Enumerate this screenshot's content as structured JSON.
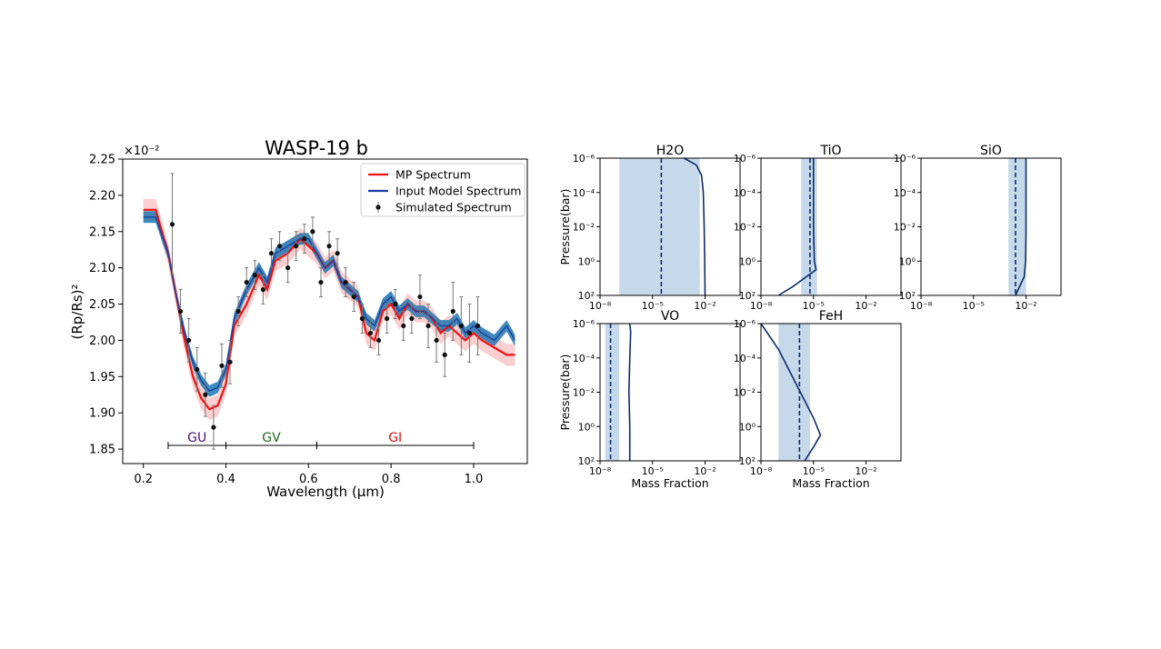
{
  "chart_data": [
    {
      "type": "line",
      "title": "WASP-19 b",
      "xlabel": "Wavelength (μm)",
      "ylabel": "(Rp/Rs)²",
      "y_offset_text": "×10⁻²",
      "xlim": [
        0.15,
        1.13
      ],
      "ylim": [
        1.83,
        2.25
      ],
      "x_ticks": [
        "0.2",
        "0.4",
        "0.6",
        "0.8",
        "1.0"
      ],
      "y_ticks": [
        "1.85",
        "1.90",
        "1.95",
        "2.00",
        "2.05",
        "2.10",
        "2.15",
        "2.20",
        "2.25"
      ],
      "legend": {
        "position": "top-right",
        "entries": [
          "MP Spectrum",
          "Input Model Spectrum",
          "Simulated Spectrum"
        ]
      },
      "colors": {
        "mp": "#ee1111",
        "input": "#1a3f9e",
        "input_fill": "#1f77b4",
        "sim": "#111111",
        "band_fill": "#f7a8a8"
      },
      "bands": [
        {
          "label": "GU",
          "x0": 0.26,
          "x1": 0.4,
          "color": "#4b0f6b"
        },
        {
          "label": "GV",
          "x0": 0.4,
          "x1": 0.62,
          "color": "#1f6b1f"
        },
        {
          "label": "GI",
          "x0": 0.62,
          "x1": 1.0,
          "color": "#dd1111"
        }
      ],
      "band_y": 1.855,
      "series": [
        {
          "name": "MP Spectrum",
          "x": [
            0.2,
            0.23,
            0.26,
            0.28,
            0.3,
            0.32,
            0.34,
            0.36,
            0.38,
            0.4,
            0.42,
            0.45,
            0.48,
            0.5,
            0.52,
            0.55,
            0.58,
            0.6,
            0.62,
            0.64,
            0.66,
            0.68,
            0.7,
            0.72,
            0.74,
            0.76,
            0.78,
            0.8,
            0.82,
            0.84,
            0.86,
            0.88,
            0.9,
            0.92,
            0.94,
            0.96,
            0.98,
            1.0,
            1.02,
            1.05,
            1.08,
            1.1
          ],
          "values": [
            2.18,
            2.18,
            2.12,
            2.06,
            2.0,
            1.95,
            1.92,
            1.905,
            1.91,
            1.94,
            2.02,
            2.05,
            2.09,
            2.07,
            2.11,
            2.12,
            2.14,
            2.13,
            2.12,
            2.1,
            2.11,
            2.08,
            2.07,
            2.06,
            2.01,
            2.0,
            2.04,
            2.05,
            2.03,
            2.05,
            2.04,
            2.04,
            2.03,
            2.01,
            2.02,
            2.01,
            2.0,
            2.01,
            2.0,
            1.99,
            1.98,
            1.98
          ]
        },
        {
          "name": "Input Model Spectrum",
          "x": [
            0.2,
            0.23,
            0.26,
            0.28,
            0.3,
            0.32,
            0.34,
            0.36,
            0.38,
            0.4,
            0.42,
            0.45,
            0.48,
            0.5,
            0.52,
            0.55,
            0.58,
            0.6,
            0.62,
            0.64,
            0.66,
            0.68,
            0.7,
            0.72,
            0.74,
            0.76,
            0.78,
            0.8,
            0.82,
            0.84,
            0.86,
            0.88,
            0.9,
            0.92,
            0.94,
            0.96,
            0.98,
            1.0,
            1.02,
            1.05,
            1.08,
            1.1
          ],
          "values": [
            2.17,
            2.17,
            2.12,
            2.06,
            2.01,
            1.97,
            1.945,
            1.93,
            1.935,
            1.96,
            2.03,
            2.07,
            2.1,
            2.08,
            2.12,
            2.13,
            2.14,
            2.14,
            2.12,
            2.1,
            2.11,
            2.08,
            2.07,
            2.06,
            2.03,
            2.02,
            2.05,
            2.06,
            2.04,
            2.05,
            2.04,
            2.04,
            2.03,
            2.02,
            2.02,
            2.03,
            2.01,
            2.02,
            2.01,
            2.0,
            2.02,
            2.0
          ]
        },
        {
          "name": "Simulated Spectrum",
          "x": [
            0.27,
            0.29,
            0.31,
            0.33,
            0.35,
            0.37,
            0.39,
            0.41,
            0.43,
            0.45,
            0.47,
            0.49,
            0.51,
            0.53,
            0.55,
            0.57,
            0.59,
            0.61,
            0.63,
            0.65,
            0.67,
            0.69,
            0.71,
            0.73,
            0.75,
            0.77,
            0.79,
            0.81,
            0.83,
            0.85,
            0.87,
            0.89,
            0.91,
            0.93,
            0.95,
            0.97,
            0.99,
            1.01
          ],
          "values": [
            2.16,
            2.04,
            2.0,
            1.96,
            1.925,
            1.88,
            1.965,
            1.97,
            2.04,
            2.08,
            2.09,
            2.07,
            2.12,
            2.13,
            2.1,
            2.13,
            2.14,
            2.15,
            2.08,
            2.13,
            2.12,
            2.08,
            2.06,
            2.03,
            2.01,
            2.0,
            2.03,
            2.05,
            2.02,
            2.03,
            2.06,
            2.02,
            2.0,
            1.98,
            2.04,
            2.02,
            2.01,
            2.02
          ],
          "errors": [
            0.07,
            0.03,
            0.03,
            0.03,
            0.03,
            0.03,
            0.03,
            0.03,
            0.02,
            0.02,
            0.02,
            0.02,
            0.02,
            0.02,
            0.02,
            0.02,
            0.02,
            0.02,
            0.02,
            0.02,
            0.02,
            0.02,
            0.02,
            0.02,
            0.02,
            0.02,
            0.02,
            0.02,
            0.02,
            0.02,
            0.03,
            0.03,
            0.03,
            0.03,
            0.04,
            0.04,
            0.04,
            0.04
          ]
        }
      ]
    },
    {
      "type": "line",
      "panels_ylabel": "Pressure(bar)",
      "panels_xlabel": "Mass Fraction",
      "x_scale": "log",
      "y_scale": "log, inverted",
      "x_log_range": [
        -8,
        0
      ],
      "y_log_range": [
        -6,
        2
      ],
      "x_tick_labels": [
        "10⁻⁸",
        "10⁻⁵",
        "10⁻²"
      ],
      "x_tick_logs": [
        -8,
        -5,
        -2
      ],
      "y_tick_labels": [
        "10⁻⁶",
        "10⁻⁴",
        "10⁻²",
        "10⁰",
        "10²"
      ],
      "y_tick_logs": [
        -6,
        -4,
        -2,
        0,
        2
      ],
      "colors": {
        "profile": "#0d2a6b",
        "shade": "#c6d9ea",
        "median": "#0d2a6b"
      },
      "panels": [
        {
          "title": "H2O",
          "shade": [
            -6.9,
            -2.3
          ],
          "median": -4.5,
          "profile": [
            [
              -3.2,
              -6
            ],
            [
              -2.5,
              -5.6
            ],
            [
              -2.2,
              -5.0
            ],
            [
              -2.1,
              -4.0
            ],
            [
              -2.05,
              -2
            ],
            [
              -2.02,
              0
            ],
            [
              -2.0,
              2
            ]
          ],
          "xlabels": true,
          "ylabels": true,
          "xtitle": false,
          "ytitle": true
        },
        {
          "title": "TiO",
          "shade": [
            -5.7,
            -4.8
          ],
          "median": -5.2,
          "profile": [
            [
              -5.0,
              -6
            ],
            [
              -5.0,
              -2
            ],
            [
              -4.95,
              0
            ],
            [
              -4.85,
              0.5
            ],
            [
              -6.2,
              1.5
            ],
            [
              -7.0,
              2
            ]
          ],
          "xlabels": true,
          "ylabels": true,
          "xtitle": false,
          "ytitle": false
        },
        {
          "title": "SiO",
          "shade": [
            -3.0,
            -2.0
          ],
          "median": -2.6,
          "profile": [
            [
              -2.0,
              -6
            ],
            [
              -2.0,
              -1.5
            ],
            [
              -2.02,
              0
            ],
            [
              -2.1,
              0.9
            ],
            [
              -2.6,
              2
            ]
          ],
          "xlabels": true,
          "ylabels": true,
          "xtitle": false,
          "ytitle": false
        },
        {
          "title": "VO",
          "shade": [
            -7.7,
            -6.9
          ],
          "median": -7.4,
          "profile": [
            [
              -6.3,
              -6
            ],
            [
              -6.25,
              -5.5
            ],
            [
              -6.3,
              -4
            ],
            [
              -6.35,
              -2
            ],
            [
              -6.3,
              0
            ],
            [
              -6.3,
              2
            ]
          ],
          "xlabels": true,
          "ylabels": true,
          "xtitle": true,
          "ytitle": true
        },
        {
          "title": "FeH",
          "shade": [
            -7.0,
            -5.2
          ],
          "median": -5.8,
          "profile": [
            [
              -8.0,
              -6
            ],
            [
              -7.0,
              -4.5
            ],
            [
              -6.0,
              -2.5
            ],
            [
              -5.0,
              -0.5
            ],
            [
              -4.6,
              0.5
            ],
            [
              -5.0,
              1.2
            ],
            [
              -5.5,
              2
            ]
          ],
          "xlabels": true,
          "ylabels": true,
          "xtitle": true,
          "ytitle": false
        }
      ]
    }
  ]
}
